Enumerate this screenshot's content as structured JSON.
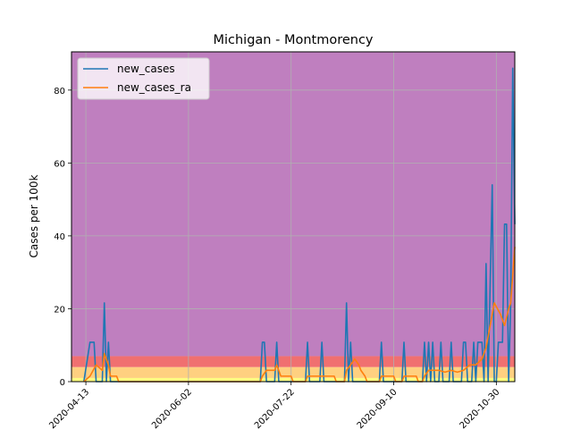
{
  "chart_data": {
    "type": "line",
    "title": "Michigan - Montmorency",
    "xlabel": "",
    "ylabel": "Cases per 100k",
    "ylim": [
      0,
      90.5
    ],
    "xlim": [
      "2020-04-06",
      "2020-11-08"
    ],
    "grid": true,
    "legend": "top-left",
    "yticks": [
      0,
      20,
      40,
      60,
      80
    ],
    "xticks": [
      "2020-04-13",
      "2020-06-02",
      "2020-07-22",
      "2020-09-10",
      "2020-10-30"
    ],
    "xtick_labels": [
      "2020-04-13",
      "2020-06-02",
      "2020-07-22",
      "2020-09-10",
      "2020-10-30"
    ],
    "background_bands": [
      {
        "from": 0,
        "to": 1,
        "color": "#ffff80"
      },
      {
        "from": 1,
        "to": 4,
        "color": "#ffd080"
      },
      {
        "from": 4,
        "to": 7,
        "color": "#f07070"
      },
      {
        "from": 7,
        "to": 90.5,
        "color": "#bf7fbf"
      }
    ],
    "series": [
      {
        "name": "new_cases",
        "color": "#1f77b4",
        "points": [
          [
            "2020-04-12",
            0
          ],
          [
            "2020-04-15",
            10.8
          ],
          [
            "2020-04-17",
            10.8
          ],
          [
            "2020-04-18",
            0
          ],
          [
            "2020-04-21",
            0
          ],
          [
            "2020-04-22",
            21.6
          ],
          [
            "2020-04-23",
            0
          ],
          [
            "2020-04-24",
            10.8
          ],
          [
            "2020-04-25",
            0
          ],
          [
            "2020-07-07",
            0
          ],
          [
            "2020-07-08",
            10.8
          ],
          [
            "2020-07-09",
            10.8
          ],
          [
            "2020-07-10",
            0
          ],
          [
            "2020-07-14",
            0
          ],
          [
            "2020-07-15",
            10.8
          ],
          [
            "2020-07-16",
            0
          ],
          [
            "2020-07-29",
            0
          ],
          [
            "2020-07-30",
            10.8
          ],
          [
            "2020-07-31",
            0
          ],
          [
            "2020-08-05",
            0
          ],
          [
            "2020-08-06",
            10.8
          ],
          [
            "2020-08-07",
            0
          ],
          [
            "2020-08-17",
            0
          ],
          [
            "2020-08-18",
            21.6
          ],
          [
            "2020-08-19",
            0
          ],
          [
            "2020-08-20",
            10.8
          ],
          [
            "2020-08-21",
            0
          ],
          [
            "2020-09-03",
            0
          ],
          [
            "2020-09-04",
            10.8
          ],
          [
            "2020-09-05",
            0
          ],
          [
            "2020-09-14",
            0
          ],
          [
            "2020-09-15",
            10.8
          ],
          [
            "2020-09-16",
            0
          ],
          [
            "2020-09-24",
            0
          ],
          [
            "2020-09-25",
            10.8
          ],
          [
            "2020-09-26",
            0
          ],
          [
            "2020-09-27",
            10.8
          ],
          [
            "2020-09-28",
            0
          ],
          [
            "2020-09-29",
            10.8
          ],
          [
            "2020-09-30",
            0
          ],
          [
            "2020-10-02",
            0
          ],
          [
            "2020-10-03",
            10.8
          ],
          [
            "2020-10-04",
            0
          ],
          [
            "2020-10-07",
            0
          ],
          [
            "2020-10-08",
            10.8
          ],
          [
            "2020-10-09",
            0
          ],
          [
            "2020-10-13",
            0
          ],
          [
            "2020-10-14",
            10.8
          ],
          [
            "2020-10-15",
            10.8
          ],
          [
            "2020-10-16",
            0
          ],
          [
            "2020-10-18",
            0
          ],
          [
            "2020-10-19",
            10.8
          ],
          [
            "2020-10-20",
            0
          ],
          [
            "2020-10-21",
            10.8
          ],
          [
            "2020-10-23",
            10.8
          ],
          [
            "2020-10-24",
            0
          ],
          [
            "2020-10-25",
            32.4
          ],
          [
            "2020-10-26",
            0
          ],
          [
            "2020-10-28",
            54
          ],
          [
            "2020-10-29",
            0
          ],
          [
            "2020-10-30",
            0
          ],
          [
            "2020-10-31",
            10.8
          ],
          [
            "2020-11-02",
            10.8
          ],
          [
            "2020-11-03",
            43.2
          ],
          [
            "2020-11-04",
            43.2
          ],
          [
            "2020-11-05",
            0
          ],
          [
            "2020-11-06",
            21.6
          ],
          [
            "2020-11-07",
            86
          ],
          [
            "2020-11-08",
            43.2
          ]
        ]
      },
      {
        "name": "new_cases_ra",
        "color": "#ff7f0e",
        "points": [
          [
            "2020-04-12",
            0
          ],
          [
            "2020-04-15",
            1.5
          ],
          [
            "2020-04-18",
            4.6
          ],
          [
            "2020-04-21",
            3.1
          ],
          [
            "2020-04-22",
            7.7
          ],
          [
            "2020-04-24",
            4.6
          ],
          [
            "2020-04-25",
            1.5
          ],
          [
            "2020-04-28",
            1.5
          ],
          [
            "2020-04-29",
            0
          ],
          [
            "2020-07-07",
            0
          ],
          [
            "2020-07-08",
            1.5
          ],
          [
            "2020-07-10",
            3.1
          ],
          [
            "2020-07-14",
            3.1
          ],
          [
            "2020-07-15",
            4.6
          ],
          [
            "2020-07-17",
            1.5
          ],
          [
            "2020-07-22",
            1.5
          ],
          [
            "2020-07-23",
            0
          ],
          [
            "2020-07-29",
            0
          ],
          [
            "2020-07-30",
            1.5
          ],
          [
            "2020-08-06",
            1.5
          ],
          [
            "2020-08-12",
            1.5
          ],
          [
            "2020-08-13",
            0
          ],
          [
            "2020-08-17",
            0
          ],
          [
            "2020-08-18",
            3.1
          ],
          [
            "2020-08-20",
            4.6
          ],
          [
            "2020-08-22",
            6.2
          ],
          [
            "2020-08-24",
            4.6
          ],
          [
            "2020-08-25",
            3.1
          ],
          [
            "2020-08-27",
            1.5
          ],
          [
            "2020-08-28",
            0
          ],
          [
            "2020-09-03",
            0
          ],
          [
            "2020-09-04",
            1.5
          ],
          [
            "2020-09-10",
            1.5
          ],
          [
            "2020-09-11",
            0
          ],
          [
            "2020-09-14",
            0
          ],
          [
            "2020-09-15",
            1.5
          ],
          [
            "2020-09-21",
            1.5
          ],
          [
            "2020-09-22",
            0
          ],
          [
            "2020-09-24",
            0
          ],
          [
            "2020-09-25",
            1.5
          ],
          [
            "2020-09-27",
            3.1
          ],
          [
            "2020-09-29",
            3.1
          ],
          [
            "2020-10-02",
            3.1
          ],
          [
            "2020-10-05",
            2.6
          ],
          [
            "2020-10-08",
            3.1
          ],
          [
            "2020-10-11",
            2.6
          ],
          [
            "2020-10-14",
            3.1
          ],
          [
            "2020-10-17",
            4.6
          ],
          [
            "2020-10-20",
            4.6
          ],
          [
            "2020-10-23",
            6.2
          ],
          [
            "2020-10-25",
            9.3
          ],
          [
            "2020-10-28",
            18.5
          ],
          [
            "2020-10-29",
            21.6
          ],
          [
            "2020-11-01",
            18.5
          ],
          [
            "2020-11-03",
            15.4
          ],
          [
            "2020-11-05",
            20
          ],
          [
            "2020-11-06",
            21.6
          ],
          [
            "2020-11-08",
            37
          ]
        ]
      }
    ]
  }
}
